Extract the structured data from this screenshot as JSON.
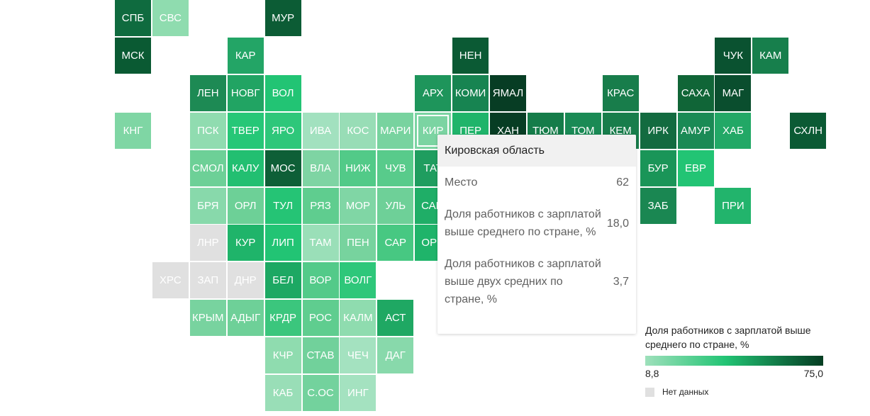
{
  "tiles": [
    {
      "label": "СПБ",
      "col": 3,
      "row": 0,
      "c": "#0f6b3f"
    },
    {
      "label": "СВС",
      "col": 4,
      "row": 0,
      "c": "#8fdcaf"
    },
    {
      "label": "МУР",
      "col": 7,
      "row": 0,
      "c": "#0c5c35"
    },
    {
      "label": "МСК",
      "col": 3,
      "row": 1,
      "c": "#0a5a33"
    },
    {
      "label": "КАР",
      "col": 6,
      "row": 1,
      "c": "#23a566"
    },
    {
      "label": "НЕН",
      "col": 12,
      "row": 1,
      "c": "#0b5a34"
    },
    {
      "label": "ЧУК",
      "col": 19,
      "row": 1,
      "c": "#0a5230"
    },
    {
      "label": "КАМ",
      "col": 20,
      "row": 1,
      "c": "#177f4c"
    },
    {
      "label": "ЛЕН",
      "col": 5,
      "row": 2,
      "c": "#1d8a54"
    },
    {
      "label": "НОВГ",
      "col": 6,
      "row": 2,
      "c": "#21a463"
    },
    {
      "label": "ВОЛ",
      "col": 7,
      "row": 2,
      "c": "#22c474"
    },
    {
      "label": "АРХ",
      "col": 11,
      "row": 2,
      "c": "#1e955b"
    },
    {
      "label": "КОМИ",
      "col": 12,
      "row": 2,
      "c": "#178451"
    },
    {
      "label": "ЯМАЛ",
      "col": 13,
      "row": 2,
      "c": "#073d24"
    },
    {
      "label": "КРАС",
      "col": 16,
      "row": 2,
      "c": "#187d4b"
    },
    {
      "label": "САХА",
      "col": 18,
      "row": 2,
      "c": "#106537"
    },
    {
      "label": "МАГ",
      "col": 19,
      "row": 2,
      "c": "#0a4e2e"
    },
    {
      "label": "КНГ",
      "col": 3,
      "row": 3,
      "c": "#7fd6a4"
    },
    {
      "label": "ПСК",
      "col": 5,
      "row": 3,
      "c": "#90dcb0"
    },
    {
      "label": "ТВЕР",
      "col": 6,
      "row": 3,
      "c": "#26c777"
    },
    {
      "label": "ЯРО",
      "col": 7,
      "row": 3,
      "c": "#2ec77a"
    },
    {
      "label": "ИВА",
      "col": 8,
      "row": 3,
      "c": "#a2e1bf"
    },
    {
      "label": "КОС",
      "col": 9,
      "row": 3,
      "c": "#98ddb6"
    },
    {
      "label": "МАРИ",
      "col": 10,
      "row": 3,
      "c": "#78d39f"
    },
    {
      "label": "КИР",
      "col": 11,
      "row": 3,
      "c": "#7bd4a2",
      "highlight": true
    },
    {
      "label": "ПЕР",
      "col": 12,
      "row": 3,
      "c": "#1fb46a"
    },
    {
      "label": "ХАН",
      "col": 13,
      "row": 3,
      "c": "#073d24"
    },
    {
      "label": "ТЮМ",
      "col": 14,
      "row": 3,
      "c": "#157c49"
    },
    {
      "label": "ТОМ",
      "col": 15,
      "row": 3,
      "c": "#1a8a55"
    },
    {
      "label": "КЕМ",
      "col": 16,
      "row": 3,
      "c": "#187d4b"
    },
    {
      "label": "ИРК",
      "col": 17,
      "row": 3,
      "c": "#136b40"
    },
    {
      "label": "АМУР",
      "col": 18,
      "row": 3,
      "c": "#1a8a55"
    },
    {
      "label": "ХАБ",
      "col": 19,
      "row": 3,
      "c": "#22a866"
    },
    {
      "label": "СХЛН",
      "col": 21,
      "row": 3,
      "c": "#0b5a34"
    },
    {
      "label": "СМОЛ",
      "col": 5,
      "row": 4,
      "c": "#6dd097"
    },
    {
      "label": "КАЛУ",
      "col": 6,
      "row": 4,
      "c": "#22bf71"
    },
    {
      "label": "МОС",
      "col": 7,
      "row": 4,
      "c": "#0e5f37"
    },
    {
      "label": "ВЛА",
      "col": 8,
      "row": 4,
      "c": "#7ed4a3"
    },
    {
      "label": "НИЖ",
      "col": 9,
      "row": 4,
      "c": "#52ca88"
    },
    {
      "label": "ЧУВ",
      "col": 10,
      "row": 4,
      "c": "#58cb8b"
    },
    {
      "label": "ТАТ",
      "col": 11,
      "row": 4,
      "c": "#1f9d5f"
    },
    {
      "label": "БУР",
      "col": 17,
      "row": 4,
      "c": "#1a9558"
    },
    {
      "label": "ЕВР",
      "col": 18,
      "row": 4,
      "c": "#22c474"
    },
    {
      "label": "БРЯ",
      "col": 5,
      "row": 5,
      "c": "#88d9ab"
    },
    {
      "label": "ОРЛ",
      "col": 6,
      "row": 5,
      "c": "#6dd097"
    },
    {
      "label": "ТУЛ",
      "col": 7,
      "row": 5,
      "c": "#25c475"
    },
    {
      "label": "РЯЗ",
      "col": 8,
      "row": 5,
      "c": "#5fcd8f"
    },
    {
      "label": "МОР",
      "col": 9,
      "row": 5,
      "c": "#80d6a5"
    },
    {
      "label": "УЛЬ",
      "col": 10,
      "row": 5,
      "c": "#6ed098"
    },
    {
      "label": "САМ",
      "col": 11,
      "row": 5,
      "c": "#1fae67"
    },
    {
      "label": "ЗАБ",
      "col": 17,
      "row": 5,
      "c": "#1a8752"
    },
    {
      "label": "ПРИ",
      "col": 19,
      "row": 5,
      "c": "#22b46c"
    },
    {
      "label": "ЛНР",
      "col": 5,
      "row": 6,
      "c": "#e0e0e0"
    },
    {
      "label": "КУР",
      "col": 6,
      "row": 6,
      "c": "#1fb46a"
    },
    {
      "label": "ЛИП",
      "col": 7,
      "row": 6,
      "c": "#22c474"
    },
    {
      "label": "ТАМ",
      "col": 8,
      "row": 6,
      "c": "#9adfb8"
    },
    {
      "label": "ПЕН",
      "col": 9,
      "row": 6,
      "c": "#77d39e"
    },
    {
      "label": "САР",
      "col": 10,
      "row": 6,
      "c": "#47c882"
    },
    {
      "label": "ОРН",
      "col": 11,
      "row": 6,
      "c": "#1fb46a"
    },
    {
      "label": "ХРС",
      "col": 4,
      "row": 7,
      "c": "#e0e0e0"
    },
    {
      "label": "ЗАП",
      "col": 5,
      "row": 7,
      "c": "#e0e0e0"
    },
    {
      "label": "ДНР",
      "col": 6,
      "row": 7,
      "c": "#e0e0e0"
    },
    {
      "label": "БЕЛ",
      "col": 7,
      "row": 7,
      "c": "#1da863"
    },
    {
      "label": "ВОР",
      "col": 8,
      "row": 7,
      "c": "#53ca89"
    },
    {
      "label": "ВОЛГ",
      "col": 9,
      "row": 7,
      "c": "#2ec77a"
    },
    {
      "label": "КРЫМ",
      "col": 5,
      "row": 8,
      "c": "#78d39f"
    },
    {
      "label": "АДЫГ",
      "col": 6,
      "row": 8,
      "c": "#6ed098"
    },
    {
      "label": "КРДР",
      "col": 7,
      "row": 8,
      "c": "#3bc67d"
    },
    {
      "label": "РОС",
      "col": 8,
      "row": 8,
      "c": "#5fcd8f"
    },
    {
      "label": "КАЛМ",
      "col": 9,
      "row": 8,
      "c": "#8fdcaf"
    },
    {
      "label": "АСТ",
      "col": 10,
      "row": 8,
      "c": "#1fa863"
    },
    {
      "label": "КЧР",
      "col": 7,
      "row": 9,
      "c": "#8fdcaf"
    },
    {
      "label": "СТАВ",
      "col": 8,
      "row": 9,
      "c": "#71d19b"
    },
    {
      "label": "ЧЕЧ",
      "col": 9,
      "row": 9,
      "c": "#a4e2c0"
    },
    {
      "label": "ДАГ",
      "col": 10,
      "row": 9,
      "c": "#88d9ab"
    },
    {
      "label": "КАБ",
      "col": 7,
      "row": 10,
      "c": "#99deb7"
    },
    {
      "label": "С.ОС",
      "col": 8,
      "row": 10,
      "c": "#73d29d"
    },
    {
      "label": "ИНГ",
      "col": 9,
      "row": 10,
      "c": "#a4e2c0"
    }
  ],
  "tooltip": {
    "region": "Кировская область",
    "place_label": "Место",
    "place_value": "62",
    "share_label": "Доля работников с зарплатой выше среднего по стране, %",
    "share_value": "18,0",
    "share2_label": "Доля работников с зарплатой выше двух средних по стране, %",
    "share2_value": "3,7"
  },
  "legend": {
    "title": "Доля работников с зарплатой выше среднего по стране, %",
    "min": "8,8",
    "max": "75,0",
    "no_data": "Нет данных"
  },
  "chart_data": {
    "type": "heatmap",
    "subtype": "tile grid map of Russian regions",
    "title": "",
    "legend_title": "Доля работников с зарплатой выше среднего по стране, %",
    "scale_min": 8.8,
    "scale_max": 75.0,
    "no_data_label": "Нет данных",
    "no_data_regions": [
      "ЛНР",
      "ХРС",
      "ЗАП",
      "ДНР"
    ],
    "tooltip_region": "Кировская область",
    "tooltip_values": {
      "Место": 62,
      "share_above_avg": 18.0,
      "share_above_two_avg": 3.7
    }
  }
}
